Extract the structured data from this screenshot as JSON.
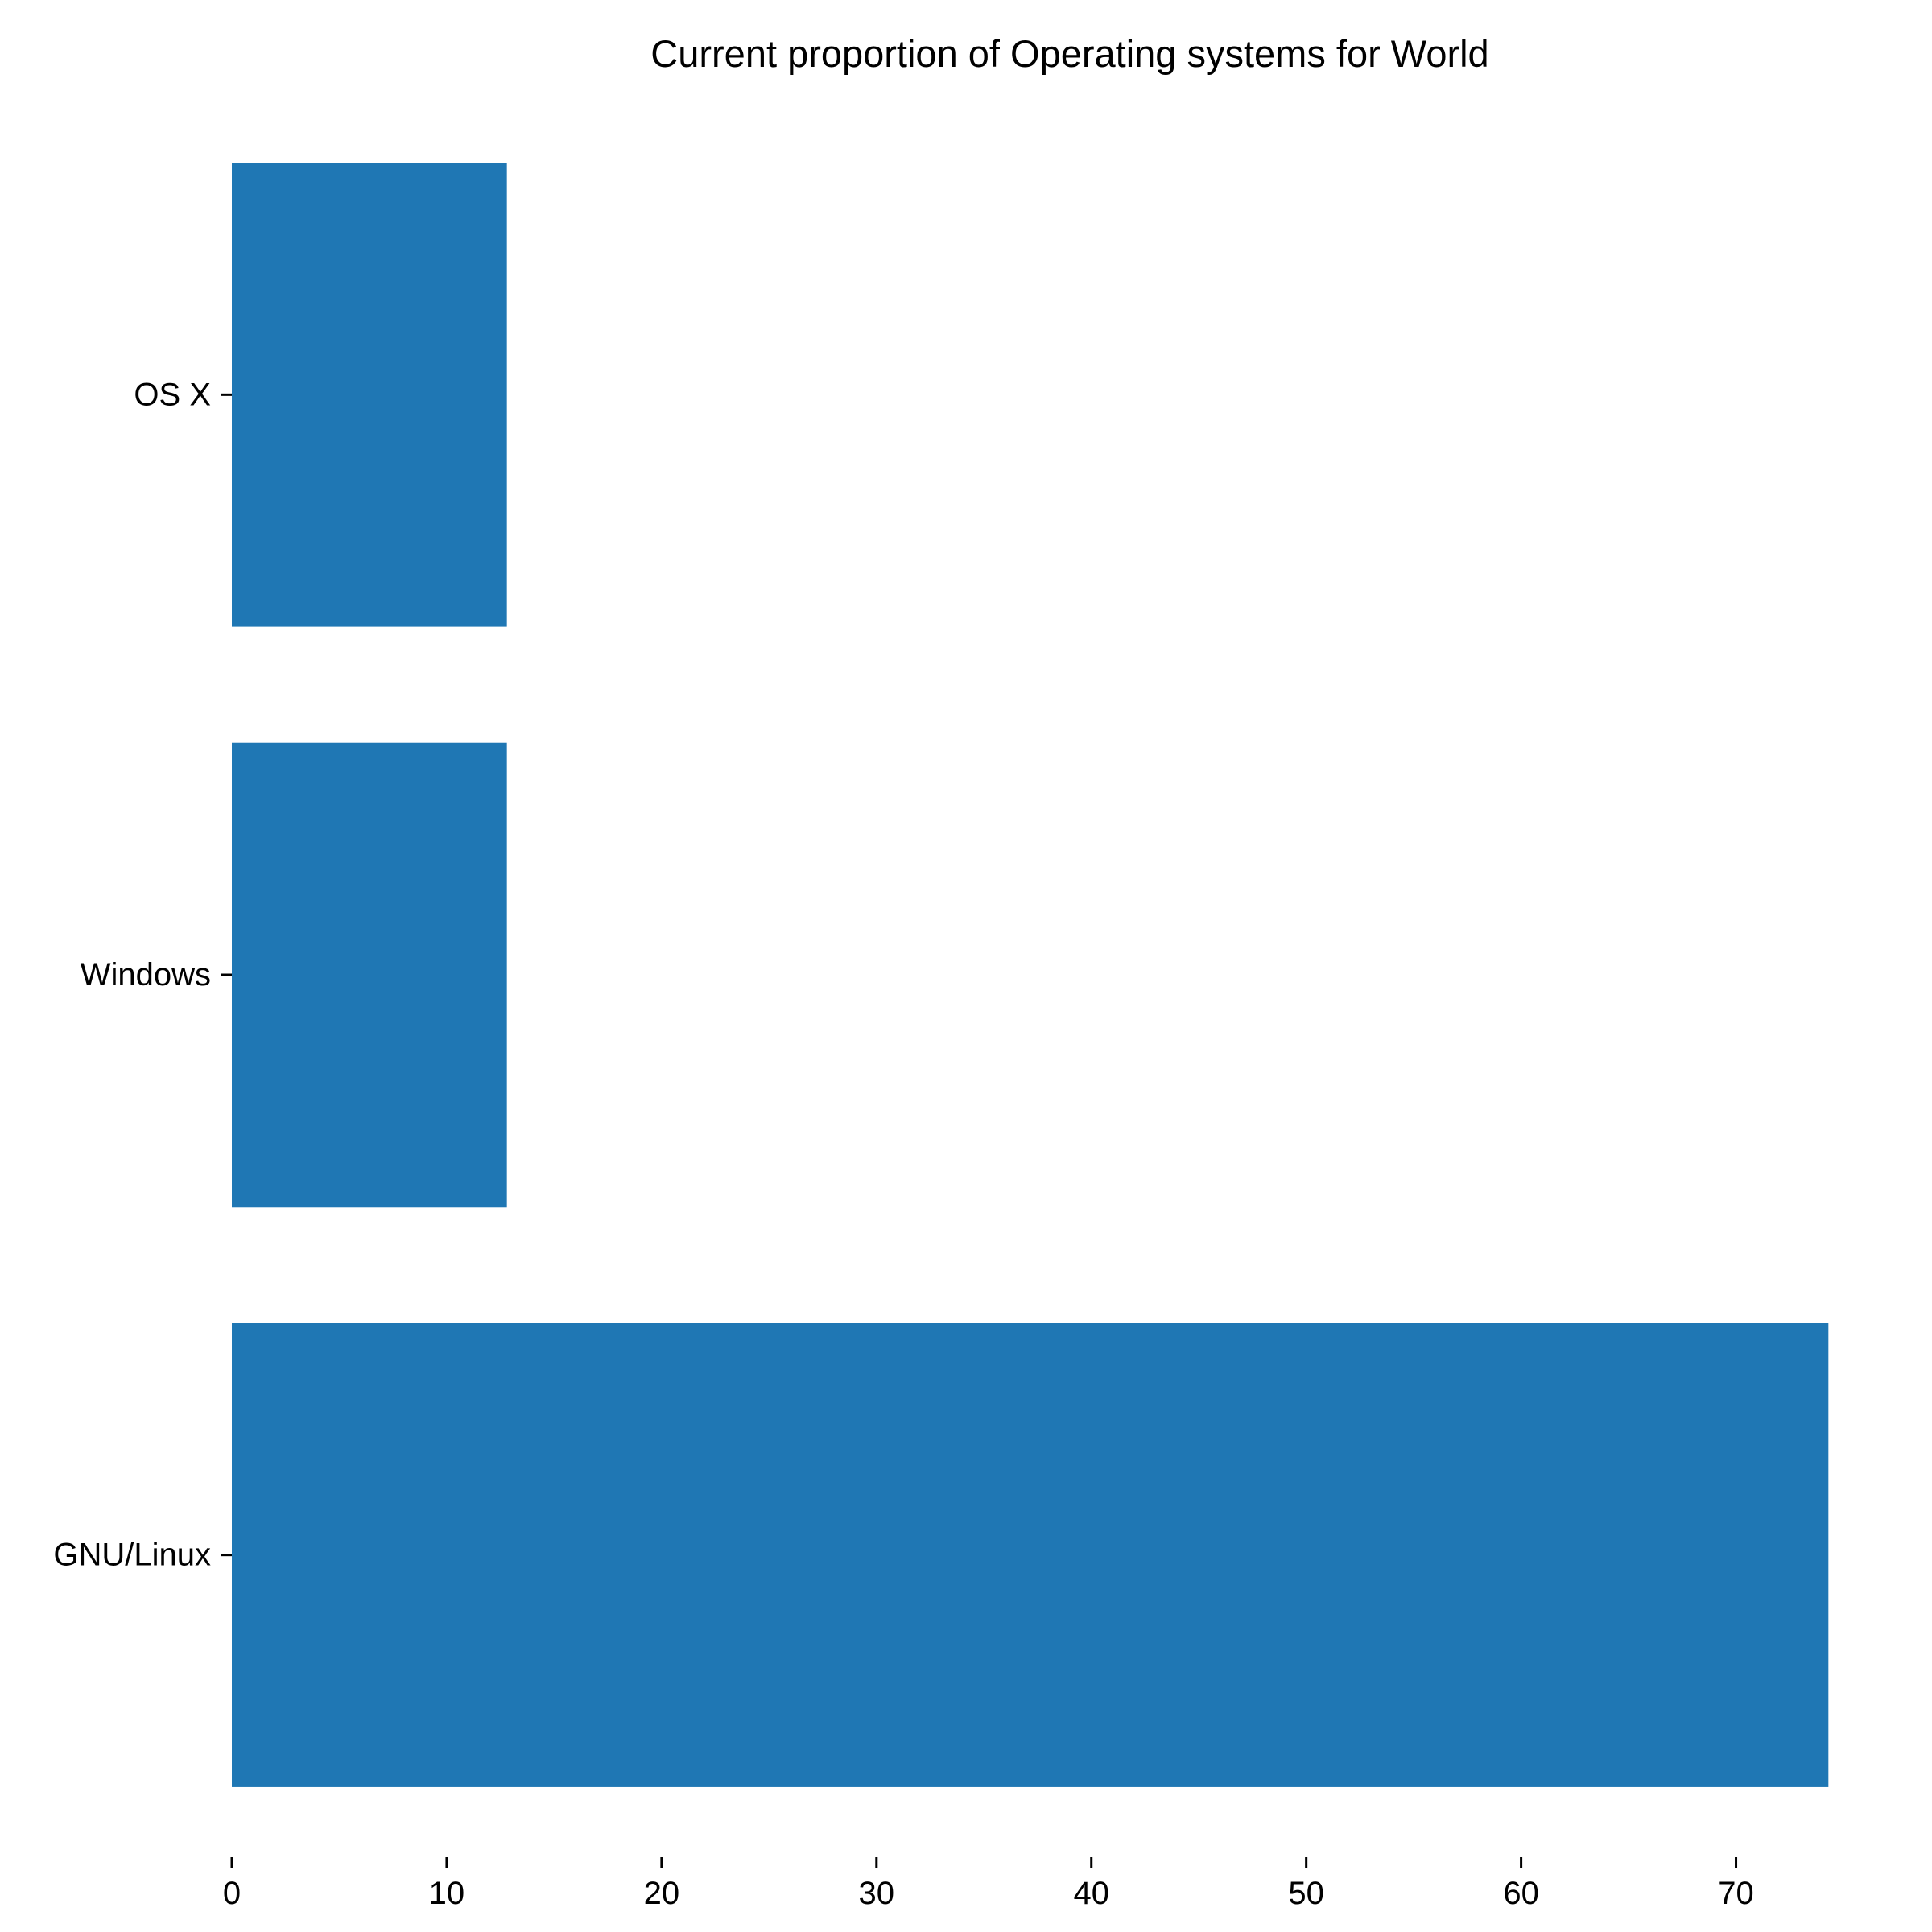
{
  "chart_data": {
    "type": "bar",
    "orientation": "horizontal",
    "title": "Current proportion of Operating systems for World",
    "xlabel": "",
    "ylabel": "",
    "categories": [
      "GNU/Linux",
      "Windows",
      "OS X"
    ],
    "values": [
      74.3,
      12.8,
      12.8
    ],
    "xlim": [
      0,
      75
    ],
    "xticks": [
      0,
      10,
      20,
      30,
      40,
      50,
      60,
      70
    ],
    "grid": false,
    "legend": "none",
    "bar_color": "#1f77b4"
  }
}
